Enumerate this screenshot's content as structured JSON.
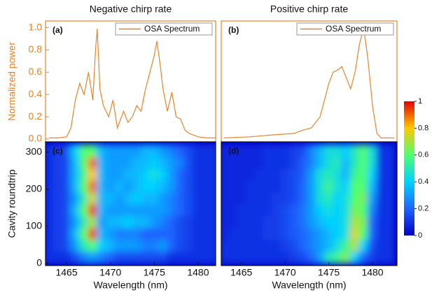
{
  "chart_data": [
    {
      "type": "line",
      "title": "Negative chirp rate",
      "panel_label": "(a)",
      "ylabel": "Normalized power",
      "axis_color": "#e8832a",
      "legend": "top-right",
      "xlim": [
        1462.6,
        1482
      ],
      "ylim": [
        -0.025,
        1.06
      ],
      "yticks": [
        {
          "value": 0,
          "label": "0.0"
        },
        0.2,
        0.4,
        0.6,
        0.8,
        {
          "value": 1,
          "label": "1.0"
        }
      ],
      "x": [
        1463,
        1464,
        1465,
        1465.5,
        1466,
        1466.5,
        1467,
        1467.5,
        1468,
        1468.3,
        1468.5,
        1468.8,
        1469.2,
        1469.8,
        1470.3,
        1470.8,
        1471.5,
        1472,
        1472.5,
        1473,
        1473.5,
        1474,
        1474.5,
        1475,
        1475.3,
        1475.7,
        1476,
        1476.5,
        1477,
        1477.5,
        1478,
        1478.5,
        1479,
        1480,
        1481,
        1482
      ],
      "series": [
        {
          "name": "OSA Spectrum",
          "color": "#e8832a",
          "values": [
            0.01,
            0.01,
            0.02,
            0.1,
            0.35,
            0.5,
            0.4,
            0.6,
            0.35,
            0.8,
            0.99,
            0.45,
            0.3,
            0.2,
            0.35,
            0.1,
            0.25,
            0.15,
            0.2,
            0.3,
            0.25,
            0.45,
            0.6,
            0.75,
            0.88,
            0.65,
            0.45,
            0.25,
            0.42,
            0.2,
            0.18,
            0.08,
            0.05,
            0.02,
            0.01,
            0.01
          ]
        }
      ]
    },
    {
      "type": "line",
      "title": "Positive chirp rate",
      "panel_label": "(b)",
      "axis_color": "#e8832a",
      "legend": "top-right",
      "xlim": [
        1462.7,
        1482.8
      ],
      "ylim": [
        -0.025,
        1.06
      ],
      "x": [
        1463,
        1466,
        1469,
        1471,
        1472,
        1473,
        1474,
        1474.5,
        1475,
        1475.5,
        1476,
        1476.5,
        1477,
        1477.5,
        1478,
        1478.5,
        1479,
        1479.5,
        1480,
        1480.5,
        1481,
        1482.5
      ],
      "series": [
        {
          "name": "OSA Spectrum",
          "color": "#e8832a",
          "values": [
            0.01,
            0.02,
            0.04,
            0.05,
            0.08,
            0.1,
            0.2,
            0.35,
            0.5,
            0.6,
            0.62,
            0.65,
            0.55,
            0.45,
            0.6,
            0.85,
            1.0,
            0.7,
            0.3,
            0.05,
            0.01,
            0.01
          ]
        }
      ]
    },
    {
      "type": "heatmap",
      "panel_label": "(c)",
      "xlabel": "Wavelength (nm)",
      "ylabel": "Cavity roundtrip",
      "xlim": [
        1462.6,
        1482
      ],
      "ylim": [
        -6,
        328
      ],
      "xticks": [
        1465,
        1470,
        1475,
        1480
      ],
      "yticks": [
        0,
        100,
        200,
        300
      ],
      "clim": [
        0,
        1
      ],
      "colormap": [
        "#0000c8",
        "#1e64ff",
        "#00d2ff",
        "#50ff6e",
        "#ffc800",
        "#e60000"
      ],
      "x": [
        1463,
        1464,
        1465,
        1466,
        1467,
        1468,
        1469,
        1470,
        1471,
        1472,
        1473,
        1474,
        1475,
        1476,
        1477,
        1478,
        1479,
        1480,
        1481,
        1482
      ],
      "y": [
        16,
        48,
        80,
        112,
        144,
        176,
        208,
        240,
        272,
        304
      ],
      "z": [
        [
          0.1,
          0.1,
          0.1,
          0.15,
          0.25,
          0.3,
          0.25,
          0.2,
          0.15,
          0.15,
          0.15,
          0.15,
          0.15,
          0.15,
          0.1,
          0.1,
          0.1,
          0.1,
          0.1,
          0.1
        ],
        [
          0.1,
          0.12,
          0.15,
          0.3,
          0.5,
          0.6,
          0.4,
          0.35,
          0.3,
          0.3,
          0.3,
          0.25,
          0.25,
          0.3,
          0.2,
          0.15,
          0.12,
          0.1,
          0.1,
          0.1
        ],
        [
          0.1,
          0.12,
          0.15,
          0.35,
          0.6,
          0.95,
          0.35,
          0.3,
          0.25,
          0.25,
          0.25,
          0.2,
          0.2,
          0.2,
          0.2,
          0.15,
          0.12,
          0.1,
          0.1,
          0.1
        ],
        [
          0.1,
          0.12,
          0.15,
          0.3,
          0.5,
          0.7,
          0.3,
          0.35,
          0.35,
          0.4,
          0.35,
          0.35,
          0.3,
          0.25,
          0.2,
          0.15,
          0.12,
          0.1,
          0.1,
          0.1
        ],
        [
          0.1,
          0.12,
          0.15,
          0.35,
          0.6,
          0.95,
          0.35,
          0.3,
          0.3,
          0.3,
          0.3,
          0.3,
          0.3,
          0.3,
          0.25,
          0.2,
          0.15,
          0.1,
          0.1,
          0.1
        ],
        [
          0.1,
          0.12,
          0.15,
          0.3,
          0.5,
          0.75,
          0.35,
          0.35,
          0.3,
          0.35,
          0.4,
          0.35,
          0.35,
          0.3,
          0.25,
          0.2,
          0.15,
          0.1,
          0.1,
          0.1
        ],
        [
          0.1,
          0.12,
          0.15,
          0.35,
          0.6,
          0.9,
          0.35,
          0.3,
          0.35,
          0.3,
          0.35,
          0.4,
          0.4,
          0.35,
          0.3,
          0.2,
          0.15,
          0.1,
          0.1,
          0.1
        ],
        [
          0.1,
          0.12,
          0.15,
          0.35,
          0.55,
          0.8,
          0.35,
          0.3,
          0.3,
          0.35,
          0.35,
          0.4,
          0.45,
          0.4,
          0.3,
          0.2,
          0.15,
          0.1,
          0.1,
          0.1
        ],
        [
          0.1,
          0.12,
          0.15,
          0.35,
          0.6,
          0.9,
          0.35,
          0.3,
          0.3,
          0.3,
          0.35,
          0.35,
          0.4,
          0.35,
          0.3,
          0.25,
          0.15,
          0.1,
          0.1,
          0.1
        ],
        [
          0.1,
          0.12,
          0.15,
          0.4,
          0.6,
          0.6,
          0.35,
          0.3,
          0.3,
          0.3,
          0.3,
          0.35,
          0.35,
          0.3,
          0.25,
          0.2,
          0.15,
          0.1,
          0.1,
          0.1
        ]
      ]
    },
    {
      "type": "heatmap",
      "panel_label": "(d)",
      "xlabel": "Wavelength (nm)",
      "xlim": [
        1462.7,
        1482.8
      ],
      "ylim": [
        -6,
        328
      ],
      "xticks": [
        1465,
        1470,
        1475,
        1480
      ],
      "clim": [
        0,
        1
      ],
      "colormap": [
        "#0000c8",
        "#1e64ff",
        "#00d2ff",
        "#50ff6e",
        "#ffc800",
        "#e60000"
      ],
      "colorbar": {
        "ticks": [
          0,
          0.2,
          0.4,
          0.6,
          0.8,
          1
        ]
      },
      "x": [
        1463,
        1464,
        1465,
        1466,
        1467,
        1468,
        1469,
        1470,
        1471,
        1472,
        1473,
        1474,
        1475,
        1476,
        1477,
        1478,
        1479,
        1480,
        1481,
        1482
      ],
      "y": [
        16,
        48,
        80,
        112,
        144,
        176,
        208,
        240,
        272,
        304
      ],
      "z": [
        [
          0.1,
          0.1,
          0.1,
          0.1,
          0.1,
          0.1,
          0.1,
          0.1,
          0.12,
          0.15,
          0.2,
          0.3,
          0.5,
          0.55,
          0.65,
          0.4,
          0.2,
          0.12,
          0.1,
          0.1
        ],
        [
          0.1,
          0.1,
          0.1,
          0.1,
          0.1,
          0.1,
          0.1,
          0.12,
          0.15,
          0.2,
          0.25,
          0.3,
          0.35,
          0.45,
          0.55,
          0.7,
          0.4,
          0.15,
          0.1,
          0.1
        ],
        [
          0.08,
          0.1,
          0.1,
          0.1,
          0.1,
          0.12,
          0.12,
          0.15,
          0.18,
          0.2,
          0.25,
          0.3,
          0.35,
          0.4,
          0.45,
          0.75,
          0.6,
          0.2,
          0.1,
          0.1
        ],
        [
          0.08,
          0.08,
          0.1,
          0.1,
          0.1,
          0.12,
          0.12,
          0.15,
          0.18,
          0.22,
          0.3,
          0.35,
          0.4,
          0.4,
          0.45,
          0.7,
          0.65,
          0.2,
          0.1,
          0.1
        ],
        [
          0.08,
          0.08,
          0.1,
          0.1,
          0.1,
          0.1,
          0.12,
          0.15,
          0.18,
          0.22,
          0.3,
          0.4,
          0.45,
          0.4,
          0.45,
          0.65,
          0.6,
          0.25,
          0.1,
          0.1
        ],
        [
          0.08,
          0.08,
          0.08,
          0.1,
          0.1,
          0.1,
          0.12,
          0.12,
          0.15,
          0.2,
          0.3,
          0.45,
          0.5,
          0.4,
          0.45,
          0.6,
          0.65,
          0.3,
          0.1,
          0.1
        ],
        [
          0.08,
          0.08,
          0.08,
          0.1,
          0.1,
          0.1,
          0.1,
          0.12,
          0.15,
          0.2,
          0.3,
          0.45,
          0.55,
          0.45,
          0.4,
          0.6,
          0.6,
          0.35,
          0.1,
          0.1
        ],
        [
          0.08,
          0.08,
          0.08,
          0.08,
          0.1,
          0.1,
          0.1,
          0.12,
          0.15,
          0.18,
          0.3,
          0.45,
          0.5,
          0.45,
          0.35,
          0.55,
          0.6,
          0.4,
          0.1,
          0.1
        ],
        [
          0.08,
          0.08,
          0.08,
          0.08,
          0.08,
          0.1,
          0.1,
          0.1,
          0.12,
          0.18,
          0.25,
          0.35,
          0.45,
          0.5,
          0.35,
          0.5,
          0.6,
          0.45,
          0.1,
          0.1
        ],
        [
          0.08,
          0.08,
          0.08,
          0.08,
          0.08,
          0.1,
          0.1,
          0.1,
          0.12,
          0.15,
          0.25,
          0.35,
          0.45,
          0.45,
          0.4,
          0.5,
          0.6,
          0.45,
          0.1,
          0.1
        ]
      ]
    }
  ]
}
